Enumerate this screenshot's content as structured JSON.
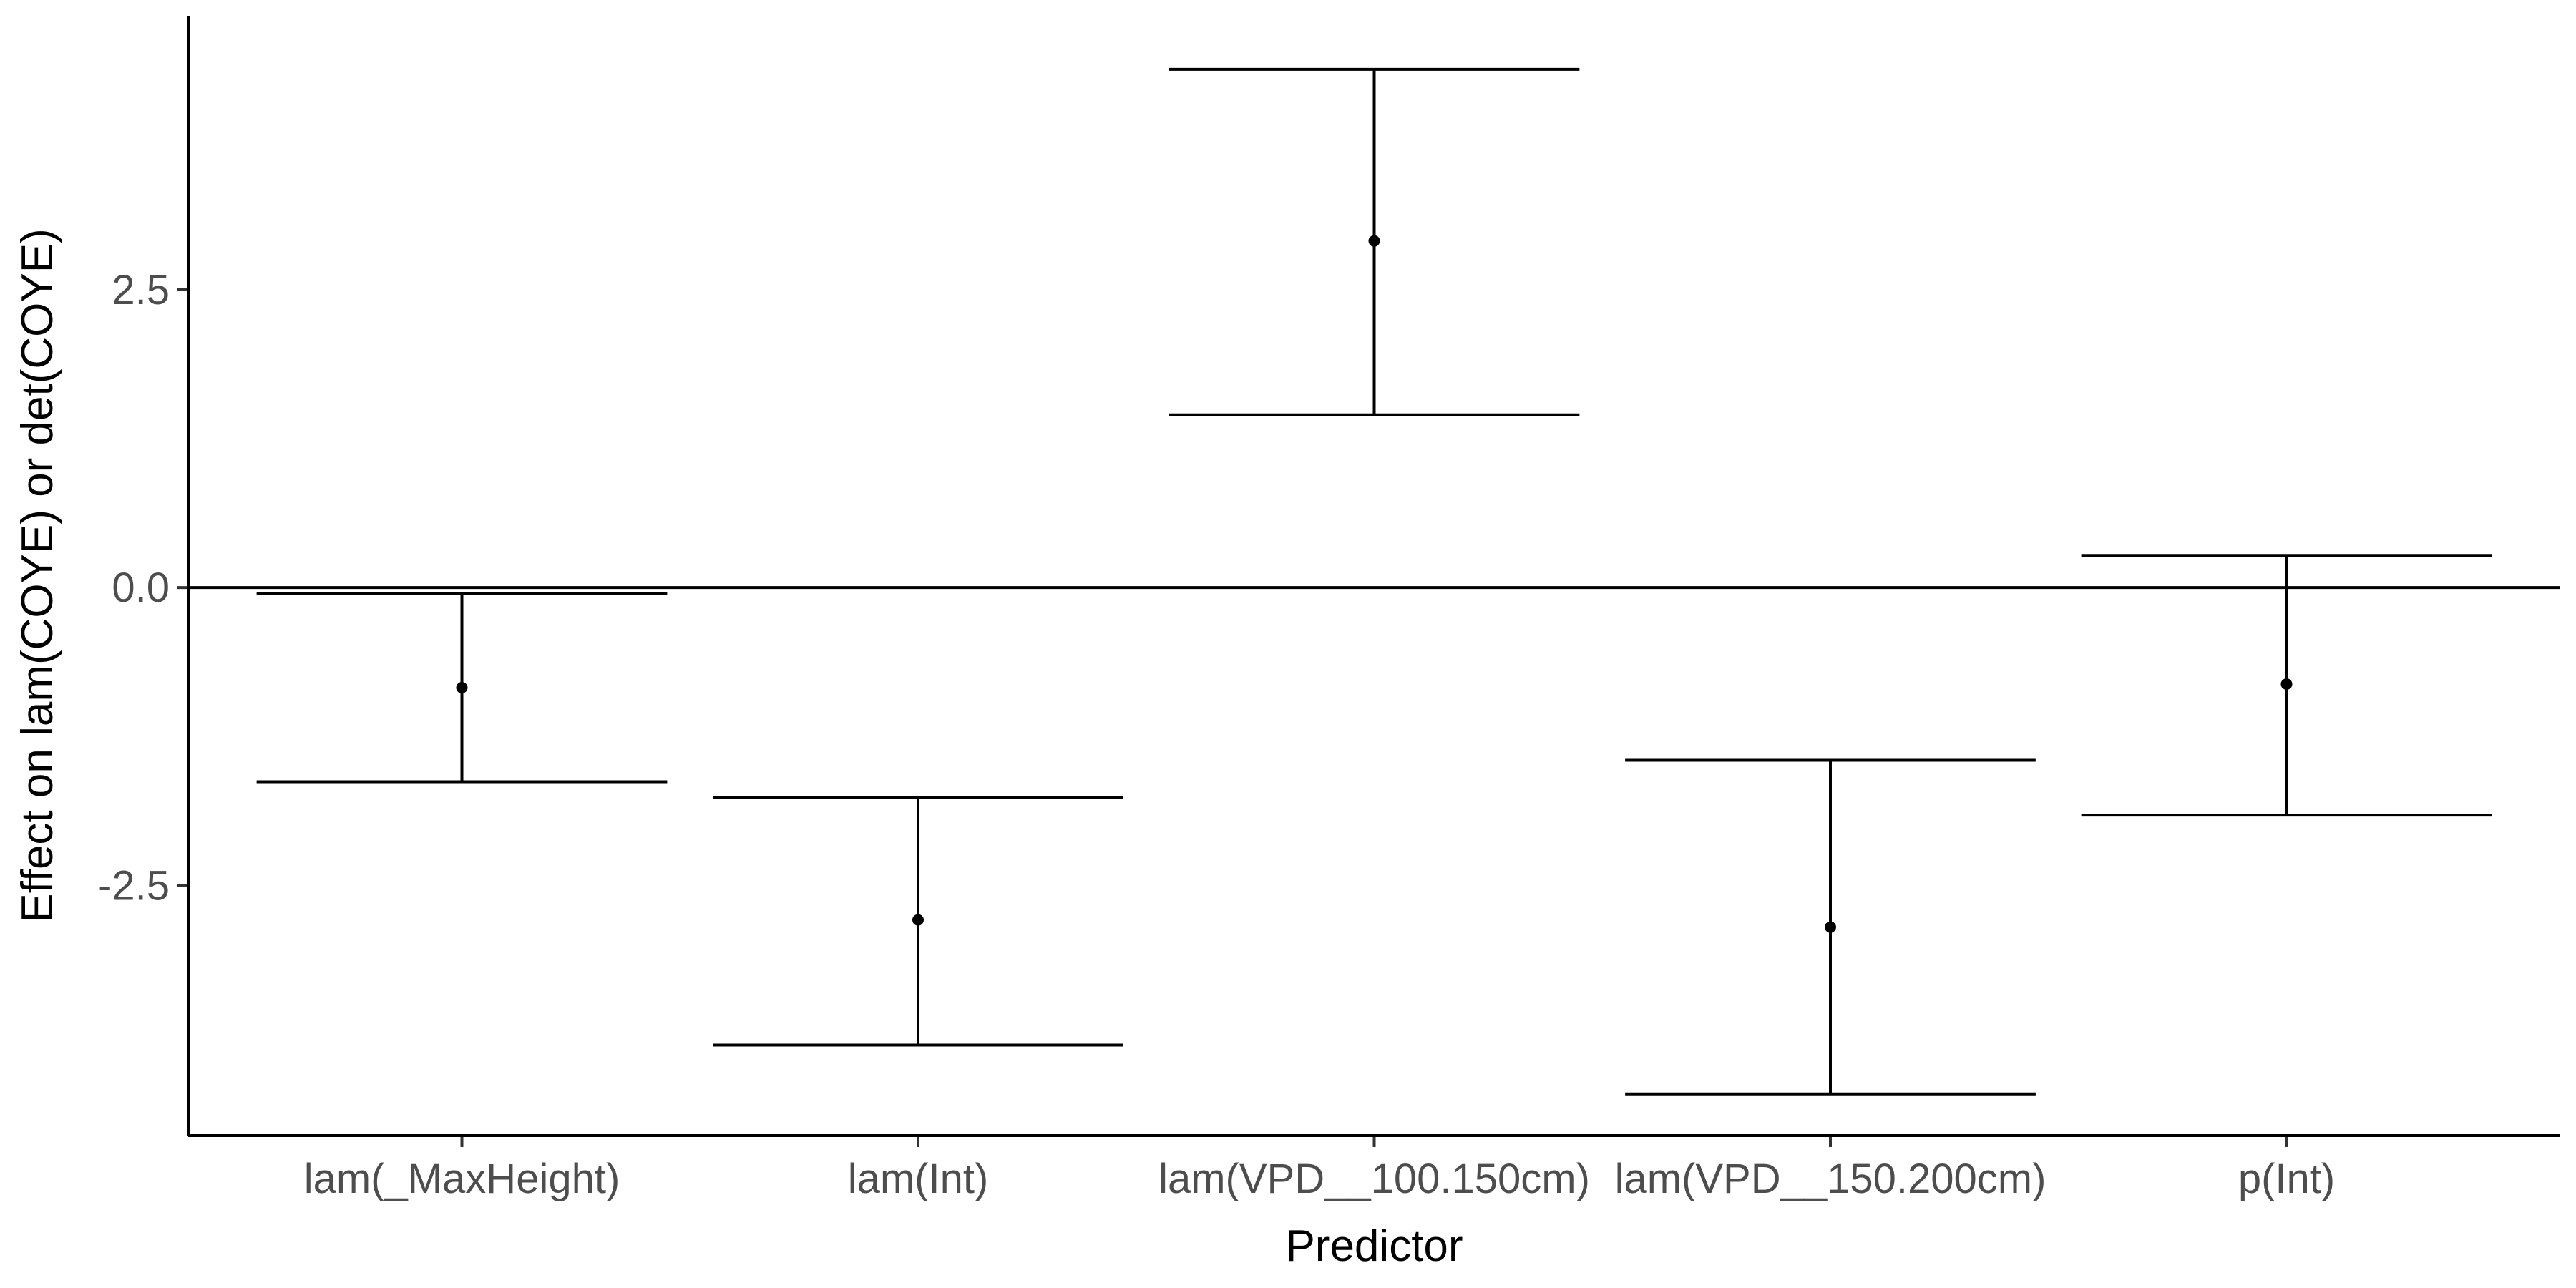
{
  "chart_data": {
    "type": "errorbar",
    "xlabel": "Predictor",
    "ylabel": "Effect on lam(COYE) or det(COYE)",
    "categories": [
      "lam(_MaxHeight)",
      "lam(Int)",
      "lam(VPD__100.150cm)",
      "lam(VPD__150.200cm)",
      "p(Int)"
    ],
    "estimates": [
      -0.84,
      -2.79,
      2.91,
      -2.85,
      -0.81
    ],
    "lower": [
      -1.63,
      -3.84,
      1.45,
      -4.25,
      -1.91
    ],
    "upper": [
      -0.05,
      -1.76,
      4.35,
      -1.45,
      0.27
    ],
    "ylim": [
      -4.6,
      4.8
    ],
    "yticks": [
      -2.5,
      0.0,
      2.5
    ],
    "ytick_labels": [
      "-2.5",
      "0.0",
      "2.5"
    ],
    "reference_line_y": 0,
    "grid": false,
    "legend": "none",
    "colors": {
      "marks": "#000000",
      "tick_labels": "#4d4d4d"
    }
  }
}
